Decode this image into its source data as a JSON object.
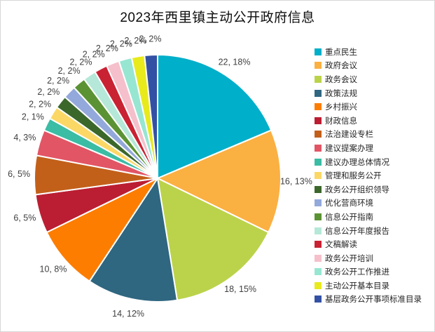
{
  "chart_data": {
    "type": "pie",
    "title": "2023年西里镇主动公开政府信息",
    "legend_position": "right",
    "total": 118,
    "label_format": "value, percent",
    "title_color": "#0d0d0d",
    "label_color": "#404040",
    "slice_border_color": "#ffffff",
    "chart_border_color": "#d7d7d7",
    "series": [
      {
        "name": "重点民生",
        "value": 22,
        "label": "22, 18%",
        "color": "#00AFC9"
      },
      {
        "name": "政府会议",
        "value": 16,
        "label": "16, 13%",
        "color": "#FBB042"
      },
      {
        "name": "政务会议",
        "value": 18,
        "label": "18, 15%",
        "color": "#BBD34A"
      },
      {
        "name": "政策法规",
        "value": 14,
        "label": "14, 12%",
        "color": "#2F6680"
      },
      {
        "name": "乡村振兴",
        "value": 10,
        "label": "10, 8%",
        "color": "#FC7D00"
      },
      {
        "name": "财政信息",
        "value": 6,
        "label": "6, 5%",
        "color": "#BB1E32"
      },
      {
        "name": "法治建设专栏",
        "value": 6,
        "label": "6, 5%",
        "color": "#C2601A"
      },
      {
        "name": "建议提案办理",
        "value": 4,
        "label": "4, 3%",
        "color": "#E25565"
      },
      {
        "name": "建议办理总体情况",
        "value": 2,
        "label": "2, 1%",
        "color": "#3BBCA4"
      },
      {
        "name": "管理和服务公开",
        "value": 2,
        "label": "2, 2%",
        "color": "#FBD866"
      },
      {
        "name": "政务公开组织领导",
        "value": 2,
        "label": "2, 2%",
        "color": "#3C672B"
      },
      {
        "name": "优化营商环境",
        "value": 2,
        "label": "2, 2%",
        "color": "#93A9DC"
      },
      {
        "name": "信息公开指南",
        "value": 2,
        "label": "2, 2%",
        "color": "#5B9334"
      },
      {
        "name": "信息公开年度报告",
        "value": 2,
        "label": "2, 2%",
        "color": "#B5E8D8"
      },
      {
        "name": "文稿解读",
        "value": 2,
        "label": "2, 2%",
        "color": "#C92233"
      },
      {
        "name": "政务公开培训",
        "value": 2,
        "label": "2, 2%",
        "color": "#F5C0CB"
      },
      {
        "name": "政务公开工作推进",
        "value": 2,
        "label": "2, 2%",
        "color": "#97E6D2"
      },
      {
        "name": "主动公开基本目录",
        "value": 2,
        "label": "2, 2%",
        "color": "#E8EA1C"
      },
      {
        "name": "基层政务公开事项标准目录",
        "value": 2,
        "label": "2, 2%",
        "color": "#3351A4"
      }
    ]
  }
}
